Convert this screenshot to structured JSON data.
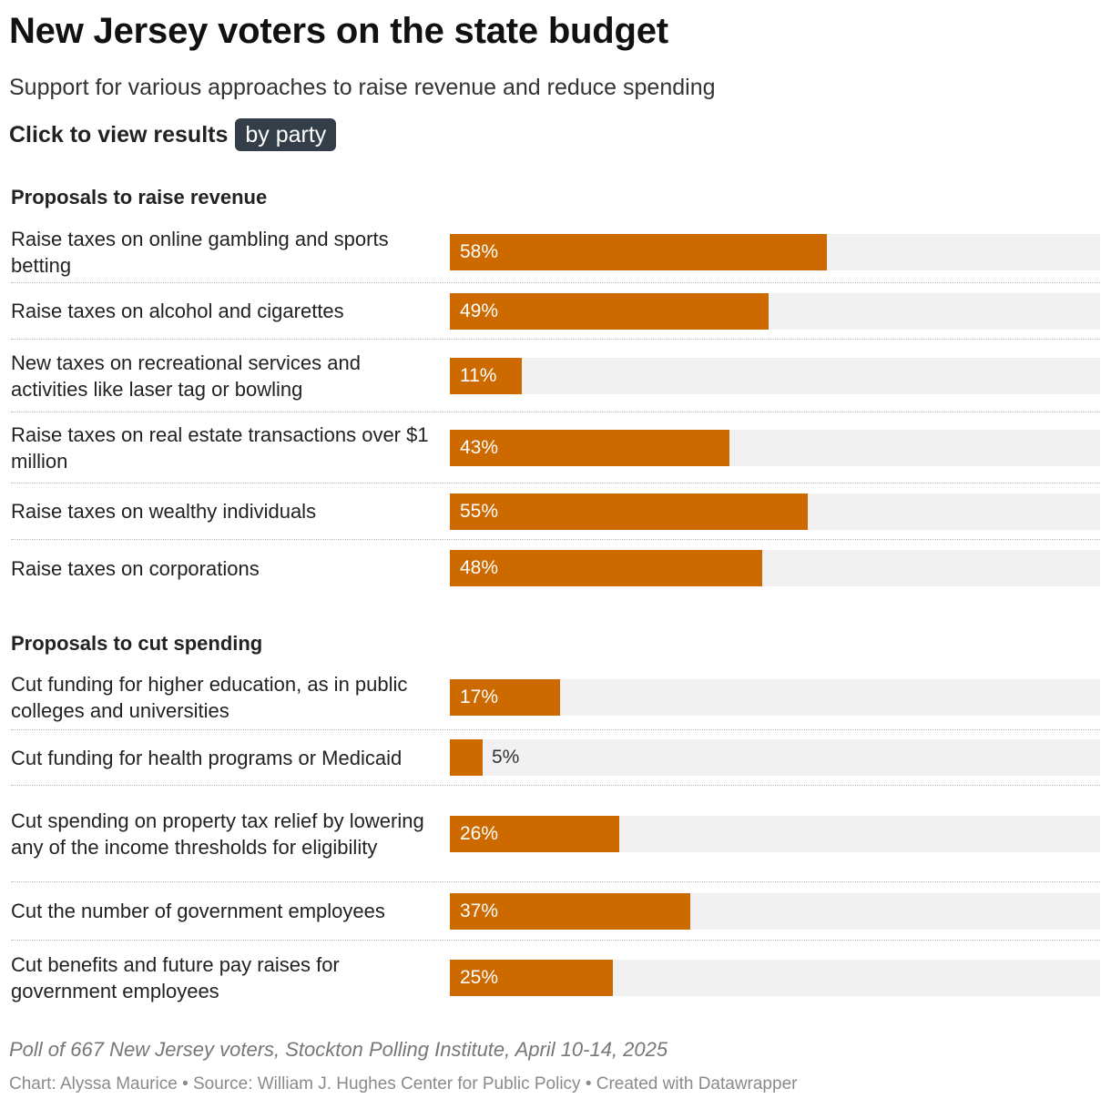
{
  "header": {
    "title": "New Jersey voters on the state budget",
    "subtitle": "Support for various approaches to raise revenue and reduce spending",
    "toggle_label": "Click to view results",
    "toggle_button": "by party"
  },
  "chart_data": {
    "type": "bar",
    "orientation": "horizontal",
    "title": "New Jersey voters on the state budget",
    "subtitle": "Support for various approaches to raise revenue and reduce spending",
    "unit": "%",
    "xlim": [
      0,
      100
    ],
    "color": "#cc6a00",
    "track_color": "#f1f1f1",
    "groups": [
      {
        "heading": "Proposals to raise revenue",
        "rows": [
          {
            "label": "Raise taxes on online gambling and sports betting",
            "value": 58,
            "value_label": "58%"
          },
          {
            "label": "Raise taxes on alcohol and cigarettes",
            "value": 49,
            "value_label": "49%"
          },
          {
            "label": "New taxes on recreational services and activities like laser tag or bowling",
            "value": 11,
            "value_label": "11%"
          },
          {
            "label": "Raise taxes on real estate transactions over $1 million",
            "value": 43,
            "value_label": "43%"
          },
          {
            "label": "Raise taxes on wealthy individuals",
            "value": 55,
            "value_label": "55%"
          },
          {
            "label": "Raise taxes on corporations",
            "value": 48,
            "value_label": "48%"
          }
        ]
      },
      {
        "heading": "Proposals to cut spending",
        "rows": [
          {
            "label": "Cut funding for higher education, as in public colleges and universities",
            "value": 17,
            "value_label": "17%"
          },
          {
            "label": "Cut funding for health programs or Medicaid",
            "value": 5,
            "value_label": "5%"
          },
          {
            "label": "Cut spending on property tax relief by lowering any of the income thresholds for eligibility",
            "value": 26,
            "value_label": "26%"
          },
          {
            "label": "Cut the number of government employees",
            "value": 37,
            "value_label": "37%"
          },
          {
            "label": "Cut benefits and future pay raises for government employees",
            "value": 25,
            "value_label": "25%"
          }
        ]
      }
    ]
  },
  "footer": {
    "note": "Poll of 667 New Jersey voters, Stockton Polling Institute, April 10-14, 2025",
    "credits": "Chart: Alyssa Maurice • Source: William J. Hughes Center for Public Policy • Created with Datawrapper"
  }
}
